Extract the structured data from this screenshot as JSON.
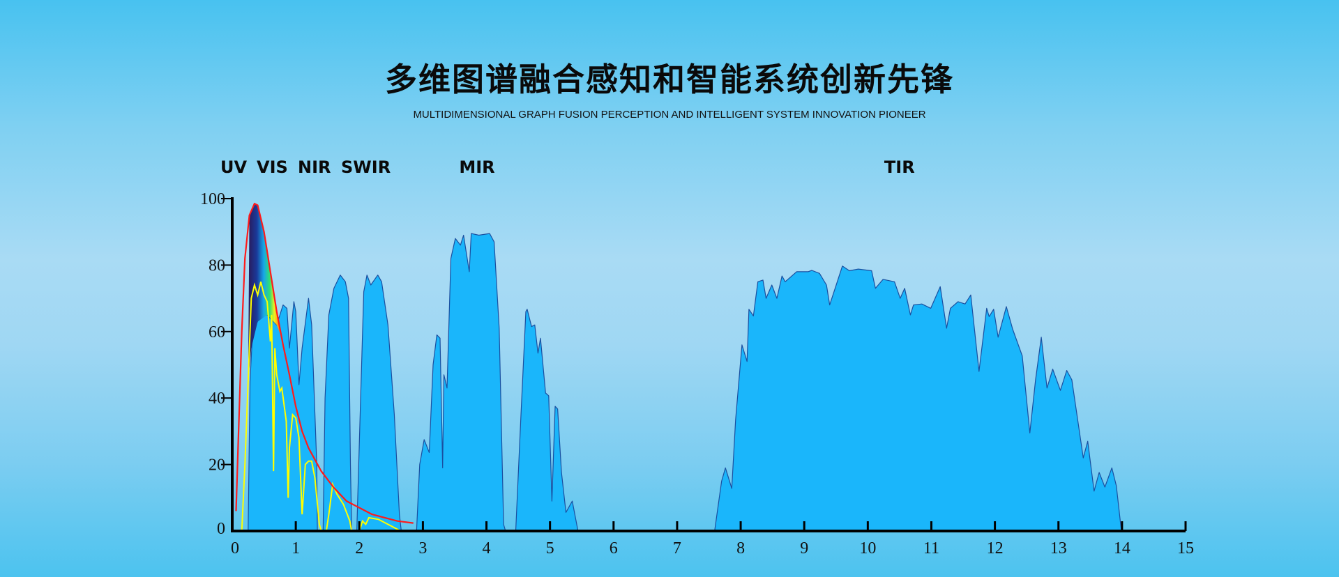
{
  "header": {
    "title": "多维图谱融合感知和智能系统创新先锋",
    "subtitle": "MULTIDIMENSIONAL GRAPH FUSION PERCEPTION AND INTELLIGENT SYSTEM INNOVATION PIONEER"
  },
  "chart_data": {
    "type": "area",
    "title": "",
    "xlabel": "",
    "ylabel": "",
    "xlim": [
      0,
      15
    ],
    "ylim": [
      0,
      100
    ],
    "x_ticks": [
      "0",
      "1",
      "2",
      "3",
      "4",
      "5",
      "6",
      "7",
      "8",
      "9",
      "10",
      "11",
      "12",
      "13",
      "14",
      "15"
    ],
    "y_ticks": [
      "0",
      "20",
      "40",
      "60",
      "80",
      "100"
    ],
    "grid": false,
    "colors": {
      "fill": "#1ab6fb",
      "outline": "#1a4fa0",
      "red_curve": "#ff1a1a",
      "yellow_curve": "#ffff00",
      "axis": "#000000"
    },
    "band_labels": [
      {
        "text": "UV",
        "x": 0.25
      },
      {
        "text": "VIS",
        "x": 0.55
      },
      {
        "text": "NIR",
        "x": 1.15
      },
      {
        "text": "SWIR",
        "x": 2.1
      },
      {
        "text": "MIR",
        "x": 3.85
      },
      {
        "text": "TIR",
        "x": 10.5
      }
    ],
    "transmission_windows": [
      [
        [
          0.25,
          0
        ],
        [
          0.28,
          45
        ],
        [
          0.32,
          60
        ],
        [
          0.45,
          65
        ],
        [
          0.55,
          65
        ],
        [
          0.7,
          62
        ],
        [
          0.8,
          68
        ],
        [
          0.86,
          67
        ],
        [
          0.9,
          55
        ],
        [
          0.97,
          69
        ],
        [
          1.0,
          66
        ],
        [
          1.05,
          44
        ],
        [
          1.1,
          55
        ],
        [
          1.2,
          70
        ],
        [
          1.25,
          62
        ],
        [
          1.33,
          20
        ],
        [
          1.34,
          0
        ]
      ],
      [
        [
          1.43,
          0
        ],
        [
          1.46,
          40
        ],
        [
          1.52,
          65
        ],
        [
          1.6,
          73
        ],
        [
          1.7,
          77
        ],
        [
          1.78,
          75
        ],
        [
          1.83,
          70
        ],
        [
          1.86,
          20
        ],
        [
          1.88,
          0
        ]
      ],
      [
        [
          1.96,
          0
        ],
        [
          2.02,
          40
        ],
        [
          2.07,
          72
        ],
        [
          2.12,
          77
        ],
        [
          2.18,
          74
        ],
        [
          2.29,
          77
        ],
        [
          2.35,
          75
        ],
        [
          2.45,
          62
        ],
        [
          2.55,
          35
        ],
        [
          2.63,
          5
        ],
        [
          2.66,
          0
        ]
      ],
      [
        [
          2.9,
          0
        ],
        [
          2.95,
          20
        ],
        [
          3.02,
          27.5
        ],
        [
          3.1,
          23.6
        ],
        [
          3.16,
          50
        ],
        [
          3.22,
          59
        ],
        [
          3.27,
          58
        ],
        [
          3.31,
          19
        ],
        [
          3.33,
          47
        ],
        [
          3.38,
          43
        ],
        [
          3.44,
          82
        ],
        [
          3.51,
          88
        ],
        [
          3.59,
          86
        ],
        [
          3.64,
          89
        ],
        [
          3.73,
          78
        ],
        [
          3.76,
          89.5
        ],
        [
          3.88,
          89
        ],
        [
          4.05,
          89.5
        ],
        [
          4.12,
          87
        ],
        [
          4.2,
          61
        ],
        [
          4.27,
          2
        ],
        [
          4.3,
          0
        ]
      ],
      [
        [
          4.46,
          0
        ],
        [
          4.54,
          33.5
        ],
        [
          4.62,
          66
        ],
        [
          4.64,
          66.7
        ],
        [
          4.71,
          61.5
        ],
        [
          4.76,
          62
        ],
        [
          4.81,
          53.5
        ],
        [
          4.85,
          58
        ],
        [
          4.93,
          41.5
        ],
        [
          4.98,
          40.7
        ],
        [
          5.03,
          9
        ],
        [
          5.08,
          37.5
        ],
        [
          5.12,
          36.7
        ],
        [
          5.18,
          17.6
        ],
        [
          5.25,
          5.6
        ],
        [
          5.35,
          9
        ],
        [
          5.44,
          0
        ]
      ],
      [
        [
          7.59,
          0
        ],
        [
          7.7,
          15
        ],
        [
          7.76,
          19
        ],
        [
          7.86,
          12.8
        ],
        [
          7.92,
          33.5
        ],
        [
          8.02,
          56
        ],
        [
          8.1,
          51
        ],
        [
          8.13,
          66.7
        ],
        [
          8.2,
          64.7
        ],
        [
          8.27,
          75
        ],
        [
          8.35,
          75.5
        ],
        [
          8.4,
          70
        ],
        [
          8.49,
          74
        ],
        [
          8.57,
          70
        ],
        [
          8.65,
          76.7
        ],
        [
          8.7,
          75
        ],
        [
          8.88,
          78
        ],
        [
          9.06,
          78
        ],
        [
          9.12,
          78.4
        ],
        [
          9.24,
          77.5
        ],
        [
          9.35,
          74
        ],
        [
          9.4,
          68
        ],
        [
          9.6,
          79.7
        ],
        [
          9.71,
          78.3
        ],
        [
          9.85,
          78.8
        ],
        [
          10.06,
          78.3
        ],
        [
          10.12,
          73
        ],
        [
          10.24,
          75.7
        ],
        [
          10.42,
          75
        ],
        [
          10.51,
          70
        ],
        [
          10.58,
          73
        ],
        [
          10.67,
          65
        ],
        [
          10.72,
          68
        ],
        [
          10.85,
          68.3
        ],
        [
          10.99,
          67
        ],
        [
          11.14,
          73.5
        ],
        [
          11.24,
          61
        ],
        [
          11.3,
          67
        ],
        [
          11.42,
          69
        ],
        [
          11.53,
          68.3
        ],
        [
          11.62,
          71
        ],
        [
          11.75,
          48
        ],
        [
          11.87,
          67
        ],
        [
          11.91,
          64.5
        ],
        [
          11.98,
          66.7
        ],
        [
          12.05,
          58.3
        ],
        [
          12.18,
          67.5
        ],
        [
          12.28,
          60.7
        ],
        [
          12.43,
          52.7
        ],
        [
          12.55,
          29.5
        ],
        [
          12.64,
          45.5
        ],
        [
          12.73,
          58.3
        ],
        [
          12.82,
          43
        ],
        [
          12.91,
          48.7
        ],
        [
          13.03,
          42.3
        ],
        [
          13.13,
          48.3
        ],
        [
          13.21,
          45.5
        ],
        [
          13.39,
          22
        ],
        [
          13.46,
          27
        ],
        [
          13.56,
          12
        ],
        [
          13.64,
          17.6
        ],
        [
          13.73,
          13.2
        ],
        [
          13.84,
          19
        ],
        [
          13.91,
          13.6
        ],
        [
          13.99,
          0
        ]
      ]
    ],
    "red_curve": [
      [
        0.06,
        6
      ],
      [
        0.1,
        30
      ],
      [
        0.15,
        60
      ],
      [
        0.2,
        82
      ],
      [
        0.27,
        95
      ],
      [
        0.35,
        98.5
      ],
      [
        0.4,
        98
      ],
      [
        0.5,
        90
      ],
      [
        0.6,
        78
      ],
      [
        0.7,
        66
      ],
      [
        0.8,
        56
      ],
      [
        0.9,
        47
      ],
      [
        1.0,
        37.5
      ],
      [
        1.1,
        30
      ],
      [
        1.2,
        25
      ],
      [
        1.4,
        18
      ],
      [
        1.6,
        13
      ],
      [
        1.8,
        9
      ],
      [
        2.0,
        7
      ],
      [
        2.2,
        5
      ],
      [
        2.4,
        4
      ],
      [
        2.6,
        3
      ],
      [
        2.85,
        2.4
      ]
    ],
    "yellow_curve": [
      [
        0.15,
        0
      ],
      [
        0.2,
        20
      ],
      [
        0.25,
        45
      ],
      [
        0.3,
        70
      ],
      [
        0.35,
        74
      ],
      [
        0.4,
        71
      ],
      [
        0.45,
        75
      ],
      [
        0.5,
        71
      ],
      [
        0.55,
        69
      ],
      [
        0.6,
        57
      ],
      [
        0.62,
        65
      ],
      [
        0.65,
        18
      ],
      [
        0.67,
        55
      ],
      [
        0.7,
        47
      ],
      [
        0.75,
        42
      ],
      [
        0.78,
        43
      ],
      [
        0.85,
        33
      ],
      [
        0.88,
        10
      ],
      [
        0.9,
        25
      ],
      [
        0.95,
        35
      ],
      [
        1.0,
        34
      ],
      [
        1.05,
        28
      ],
      [
        1.1,
        5
      ],
      [
        1.15,
        20
      ],
      [
        1.2,
        21
      ],
      [
        1.25,
        21
      ],
      [
        1.3,
        16
      ],
      [
        1.37,
        2
      ],
      [
        1.4,
        0
      ],
      [
        1.48,
        0
      ],
      [
        1.52,
        5
      ],
      [
        1.58,
        14
      ],
      [
        1.65,
        11
      ],
      [
        1.75,
        8
      ],
      [
        1.85,
        3
      ],
      [
        1.88,
        0
      ],
      [
        2.0,
        0
      ],
      [
        2.05,
        3
      ],
      [
        2.1,
        2
      ],
      [
        2.15,
        4
      ],
      [
        2.3,
        3.5
      ],
      [
        2.5,
        1.5
      ],
      [
        2.65,
        0
      ]
    ],
    "visible_spectrum_region": [
      [
        0.25,
        45
      ],
      [
        0.27,
        95
      ],
      [
        0.35,
        98.5
      ],
      [
        0.4,
        98
      ],
      [
        0.5,
        90
      ],
      [
        0.6,
        78
      ],
      [
        0.7,
        66
      ],
      [
        0.8,
        57
      ],
      [
        0.7,
        62
      ],
      [
        0.55,
        65
      ],
      [
        0.4,
        63
      ],
      [
        0.3,
        55
      ]
    ]
  }
}
